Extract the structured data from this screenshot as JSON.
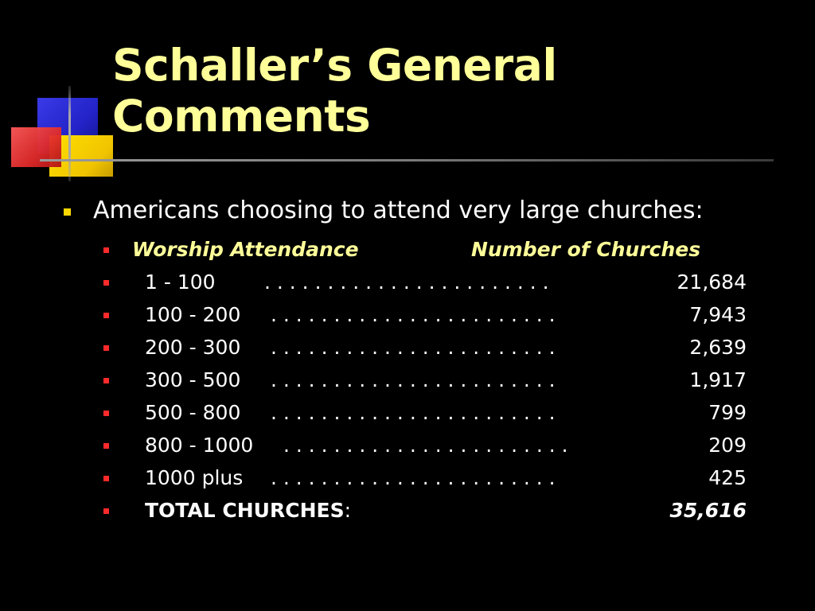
{
  "title": {
    "line1": "Schaller’s General",
    "line2": "Comments"
  },
  "bullet": {
    "text": "Americans choosing to attend very large churches:"
  },
  "table": {
    "header_attendance": "Worship Attendance",
    "header_churches": "Number of Churches",
    "dots": ". . . . . . . . . . . . . . . . . . . . . . .",
    "rows": [
      {
        "label": "1 -    100",
        "value": "21,684"
      },
      {
        "label": "100 - 200",
        "value": "7,943"
      },
      {
        "label": "200 - 300",
        "value": "2,639"
      },
      {
        "label": "300 - 500",
        "value": "1,917"
      },
      {
        "label": "500 - 800",
        "value": "799"
      },
      {
        "label": "800 - 1000",
        "value": "209"
      },
      {
        "label": "1000 plus",
        "value": "425"
      }
    ],
    "total_label": "TOTAL CHURCHES",
    "total_colon": ":",
    "total_value": "35,616"
  },
  "colors": {
    "background": "#000000",
    "title": "#ffff99",
    "text": "#ffffff",
    "bullet_level1": "#ffd700",
    "bullet_level2": "#ff2a2a"
  }
}
